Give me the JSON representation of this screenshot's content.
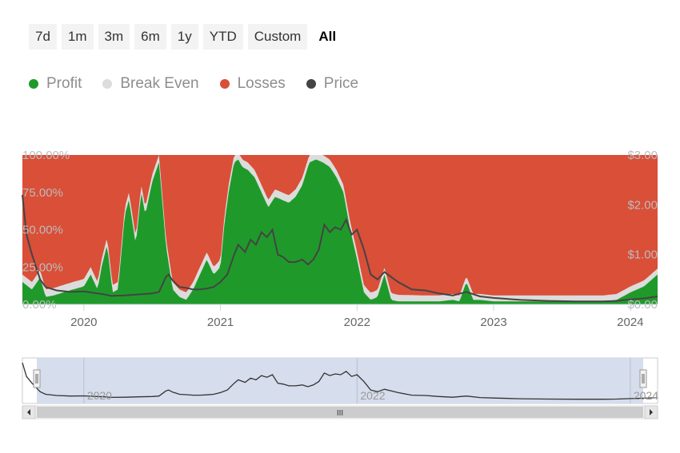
{
  "range_selector": {
    "buttons": [
      "7d",
      "1m",
      "3m",
      "6m",
      "1y",
      "YTD",
      "Custom",
      "All"
    ],
    "active": "All"
  },
  "legend": [
    {
      "label": "Profit",
      "color": "#1f9a2a"
    },
    {
      "label": "Break Even",
      "color": "#dcdcdc"
    },
    {
      "label": "Losses",
      "color": "#d94f38"
    },
    {
      "label": "Price",
      "color": "#444444"
    }
  ],
  "chart_data": {
    "type": "area",
    "stacked_percent": true,
    "x_ticks": [
      "2020",
      "2021",
      "2022",
      "2023",
      "2024"
    ],
    "y_left_ticks": [
      "0.00%",
      "25.00%",
      "50.00%",
      "75.00%",
      "100.00%"
    ],
    "y_right_ticks": [
      "$0.00",
      "$1.00",
      "$2.00",
      "$3.00"
    ],
    "y_left_range": [
      0,
      100
    ],
    "y_right_range": [
      0,
      3
    ],
    "x_range": [
      2019.55,
      2024.2
    ],
    "series": [
      {
        "name": "Profit",
        "color": "#1f9a2a",
        "x": [
          2019.55,
          2019.62,
          2019.68,
          2019.72,
          2019.78,
          2019.85,
          2019.92,
          2020.0,
          2020.05,
          2020.1,
          2020.13,
          2020.17,
          2020.21,
          2020.25,
          2020.3,
          2020.33,
          2020.38,
          2020.42,
          2020.45,
          2020.5,
          2020.55,
          2020.6,
          2020.65,
          2020.7,
          2020.75,
          2020.8,
          2020.85,
          2020.9,
          2020.95,
          2021.0,
          2021.03,
          2021.06,
          2021.1,
          2021.13,
          2021.16,
          2021.2,
          2021.25,
          2021.3,
          2021.35,
          2021.4,
          2021.45,
          2021.5,
          2021.55,
          2021.6,
          2021.65,
          2021.7,
          2021.75,
          2021.8,
          2021.85,
          2021.9,
          2021.95,
          2022.0,
          2022.05,
          2022.1,
          2022.15,
          2022.2,
          2022.25,
          2022.3,
          2022.4,
          2022.5,
          2022.6,
          2022.7,
          2022.75,
          2022.8,
          2022.85,
          2022.9,
          2023.0,
          2023.2,
          2023.4,
          2023.6,
          2023.8,
          2023.9,
          2024.0,
          2024.1,
          2024.2
        ],
        "values": [
          15,
          10,
          18,
          5,
          6,
          8,
          10,
          12,
          20,
          10,
          25,
          40,
          8,
          10,
          60,
          70,
          40,
          75,
          60,
          82,
          95,
          40,
          10,
          5,
          3,
          10,
          20,
          30,
          20,
          25,
          55,
          75,
          95,
          97,
          92,
          90,
          85,
          75,
          65,
          72,
          70,
          68,
          72,
          80,
          95,
          97,
          95,
          92,
          85,
          75,
          50,
          30,
          8,
          3,
          5,
          20,
          3,
          2,
          2,
          2,
          2,
          3,
          2,
          15,
          3,
          3,
          2,
          2,
          2,
          2,
          2,
          3,
          8,
          12,
          20
        ]
      },
      {
        "name": "Break Even",
        "color": "#dcdcdc",
        "x": [
          2019.55,
          2020.0,
          2020.5,
          2021.0,
          2021.5,
          2022.0,
          2022.5,
          2023.0,
          2023.5,
          2024.0,
          2024.2
        ],
        "values": [
          3,
          3,
          3,
          3,
          3,
          3,
          2,
          2,
          2,
          2,
          2
        ]
      },
      {
        "name": "Losses",
        "color": "#d94f38",
        "x": [
          2019.55,
          2024.2
        ],
        "values": [
          82,
          78
        ]
      },
      {
        "name": "Price",
        "color": "#444444",
        "axis": "right",
        "x": [
          2019.55,
          2019.58,
          2019.62,
          2019.68,
          2019.72,
          2019.8,
          2019.9,
          2020.0,
          2020.1,
          2020.15,
          2020.2,
          2020.3,
          2020.4,
          2020.5,
          2020.55,
          2020.6,
          2020.62,
          2020.65,
          2020.7,
          2020.75,
          2020.8,
          2020.85,
          2020.9,
          2020.95,
          2021.0,
          2021.05,
          2021.1,
          2021.13,
          2021.18,
          2021.22,
          2021.26,
          2021.3,
          2021.34,
          2021.38,
          2021.42,
          2021.46,
          2021.5,
          2021.55,
          2021.6,
          2021.64,
          2021.68,
          2021.72,
          2021.76,
          2021.8,
          2021.84,
          2021.88,
          2021.92,
          2021.96,
          2022.0,
          2022.05,
          2022.1,
          2022.15,
          2022.2,
          2022.25,
          2022.3,
          2022.4,
          2022.5,
          2022.6,
          2022.7,
          2022.8,
          2022.9,
          2023.0,
          2023.2,
          2023.4,
          2023.6,
          2023.8,
          2023.9,
          2024.0,
          2024.1,
          2024.2
        ],
        "values": [
          2.2,
          1.4,
          1.0,
          0.5,
          0.35,
          0.28,
          0.25,
          0.26,
          0.22,
          0.2,
          0.17,
          0.18,
          0.2,
          0.22,
          0.25,
          0.55,
          0.6,
          0.48,
          0.35,
          0.33,
          0.3,
          0.3,
          0.32,
          0.35,
          0.45,
          0.6,
          1.0,
          1.2,
          1.05,
          1.3,
          1.2,
          1.45,
          1.35,
          1.5,
          1.0,
          0.95,
          0.85,
          0.85,
          0.9,
          0.8,
          0.9,
          1.1,
          1.6,
          1.45,
          1.55,
          1.5,
          1.7,
          1.4,
          1.5,
          1.1,
          0.6,
          0.5,
          0.65,
          0.55,
          0.45,
          0.3,
          0.28,
          0.22,
          0.18,
          0.25,
          0.16,
          0.13,
          0.09,
          0.07,
          0.06,
          0.06,
          0.07,
          0.1,
          0.12,
          0.16
        ]
      }
    ],
    "grid": false,
    "legend_position": "top-left"
  },
  "navigator": {
    "x_ticks": [
      "2020",
      "2022",
      "2024"
    ],
    "scrollbar_grip": "III"
  }
}
